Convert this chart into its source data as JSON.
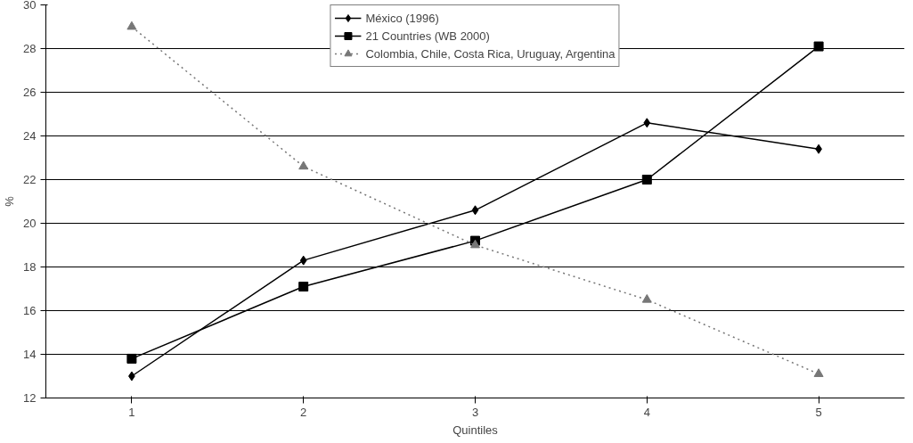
{
  "chart_data": {
    "type": "line",
    "xlabel": "Quintiles",
    "ylabel": "%",
    "categories": [
      "1",
      "2",
      "3",
      "4",
      "5"
    ],
    "ylim": [
      12,
      30
    ],
    "yticks": [
      12,
      14,
      16,
      18,
      20,
      22,
      24,
      26,
      28,
      30
    ],
    "grid": "y",
    "legend": "top",
    "series": [
      {
        "name": "México (1996)",
        "color": "#000000",
        "values": [
          13.0,
          18.3,
          20.6,
          24.6,
          23.4
        ],
        "marker": "diamond",
        "line_style": "solid"
      },
      {
        "name": "21 Countries (WB 2000)",
        "color": "#000000",
        "values": [
          13.8,
          17.1,
          19.2,
          22.0,
          28.1
        ],
        "marker": "square",
        "line_style": "solid"
      },
      {
        "name": "Colombia, Chile, Costa Rica, Uruguay, Argentina",
        "color": "#777777",
        "values": [
          29.0,
          22.6,
          19.0,
          16.5,
          13.1
        ],
        "marker": "triangle",
        "line_style": "dotted"
      }
    ]
  }
}
